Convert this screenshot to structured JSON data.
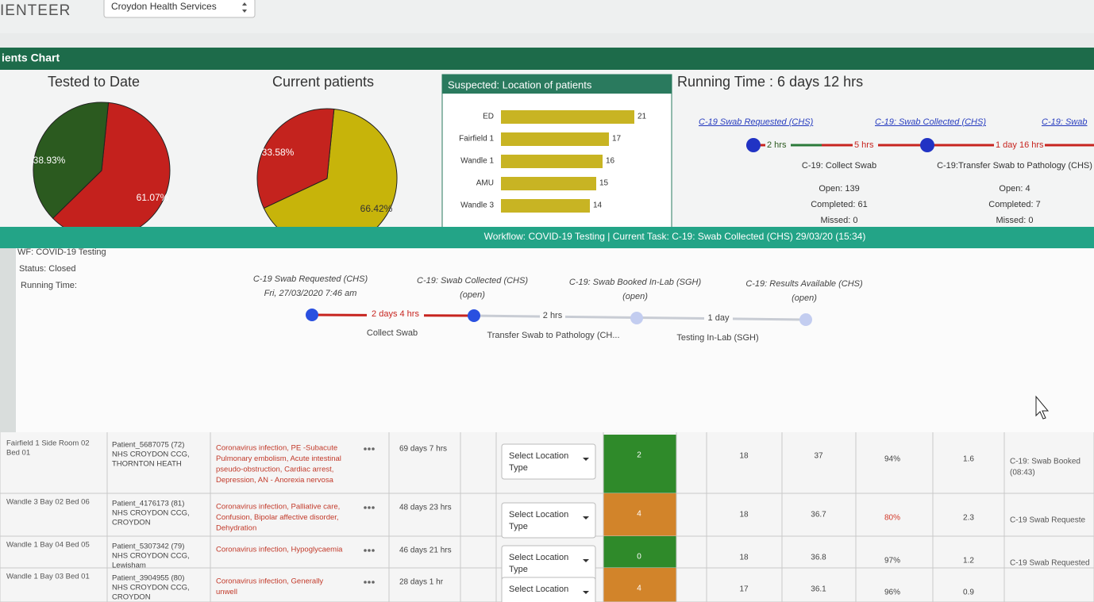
{
  "header": {
    "brand": "IENTEER",
    "selector": "Croydon Health Services"
  },
  "section_title": "ients Chart",
  "pies": [
    {
      "title": "Tested to Date",
      "values": [
        61.07,
        38.93
      ],
      "value_labels": [
        "61.07%",
        "38.93%"
      ],
      "colors": [
        "#c4211d",
        "#2b5a1f"
      ]
    },
    {
      "title": "Current patients",
      "values": [
        66.42,
        33.58
      ],
      "value_labels": [
        "66.42%",
        "33.58%"
      ],
      "colors": [
        "#c7b40a",
        "#c4231e"
      ]
    }
  ],
  "location_chart": {
    "title": "Suspected: Location of patients",
    "categories": [
      "ED",
      "Fairfield 1",
      "Wandle 1",
      "AMU",
      "Wandle 3"
    ],
    "values": [
      21,
      17,
      16,
      15,
      14
    ],
    "color": "#c8b423"
  },
  "running": {
    "title": "Running Time : 6 days 12 hrs",
    "steps": [
      "C-19 Swab Requested (CHS)",
      "C-19: Swab Collected (CHS)",
      "C-19: Swab"
    ],
    "durations": [
      "2 hrs",
      "5 hrs",
      "1 day 16 hrs"
    ],
    "tasks": [
      {
        "name": "C-19: Collect Swab",
        "stats": [
          "Open: 139",
          "Completed: 61",
          "Missed: 0"
        ]
      },
      {
        "name": "C-19:Transfer Swab to Pathology (CHS)",
        "stats": [
          "Open: 4",
          "Completed: 7",
          "Missed: 0"
        ]
      }
    ]
  },
  "workflow_bar": "Workflow: COVID-19 Testing | Current Task: C-19: Swab Collected (CHS) 29/03/20 (15:34)",
  "popup": {
    "info": [
      "WF: COVID-19 Testing",
      "Status: Closed",
      "Running Time:"
    ],
    "steps": [
      {
        "name": "C-19 Swab Requested (CHS)",
        "sub": "Fri, 27/03/2020 7:46 am"
      },
      {
        "name": "C-19: Swab Collected (CHS)",
        "sub": "(open)"
      },
      {
        "name": "C-19: Swab Booked In-Lab (SGH)",
        "sub": "(open)"
      },
      {
        "name": "C-19: Results Available (CHS)",
        "sub": "(open)"
      }
    ],
    "durations": [
      "2 days 4 hrs",
      "2 hrs",
      "1 day"
    ],
    "tasks": [
      "Collect Swab",
      "Transfer Swab to Pathology (CH...",
      "Testing In-Lab (SGH)"
    ]
  },
  "table": {
    "rows": [
      {
        "location": [
          "Fairfield 1 Side Room 02",
          "Bed 01"
        ],
        "patient": [
          "Patient_5687075 (72)",
          "NHS CROYDON CCG,",
          "THORNTON HEATH"
        ],
        "diagnosis": [
          "Coronavirus infection, PE -Subacute",
          "Pulmonary embolism, Acute intestinal",
          "pseudo-obstruction, Cardiac arrest,",
          "Depression, AN - Anorexia nervosa"
        ],
        "duration": "69 days 7 hrs",
        "select": [
          "Select Location",
          "Type"
        ],
        "score": "2",
        "score_color": "#2f8a2a",
        "c1": "18",
        "c2": "37",
        "pct": "94%",
        "pct_color": "#444",
        "c3": "1.6",
        "status": [
          "C-19: Swab Booked",
          "(08:43)"
        ]
      },
      {
        "location": [
          "Wandle 3 Bay 02 Bed 06"
        ],
        "patient": [
          "Patient_4176173 (81)",
          "NHS CROYDON CCG,",
          "CROYDON"
        ],
        "diagnosis": [
          "Coronavirus infection, Palliative care,",
          "Confusion, Bipolar affective disorder,",
          "Dehydration"
        ],
        "duration": "48 days 23 hrs",
        "select": [
          "Select Location",
          "Type"
        ],
        "score": "4",
        "score_color": "#d2842a",
        "c1": "18",
        "c2": "36.7",
        "pct": "80%",
        "pct_color": "#d23a2a",
        "c3": "2.3",
        "status": [
          "C-19 Swab Requeste"
        ]
      },
      {
        "location": [
          "Wandle 1 Bay 04 Bed 05"
        ],
        "patient": [
          "Patient_5307342 (79)",
          "NHS CROYDON CCG,",
          "Lewisham"
        ],
        "diagnosis": [
          "Coronavirus infection, Hypoglycaemia"
        ],
        "duration": "46 days 21 hrs",
        "select": [
          "Select Location",
          "Type"
        ],
        "score": "0",
        "score_color": "#2f8a2a",
        "c1": "18",
        "c2": "36.8",
        "pct": "97%",
        "pct_color": "#444",
        "c3": "1.2",
        "status": [
          "C-19 Swab Requested"
        ]
      },
      {
        "location": [
          "Wandle 1 Bay 03 Bed 01"
        ],
        "patient": [
          "Patient_3904955 (80)",
          "NHS CROYDON CCG,",
          "CROYDON"
        ],
        "diagnosis": [
          "Coronavirus infection, Generally",
          "unwell"
        ],
        "duration": "28 days 1 hr",
        "select": [
          "Select Location"
        ],
        "score": "4",
        "score_color": "#d2842a",
        "c1": "17",
        "c2": "36.1",
        "pct": "96%",
        "pct_color": "#444",
        "c3": "0.9",
        "status": []
      }
    ]
  }
}
